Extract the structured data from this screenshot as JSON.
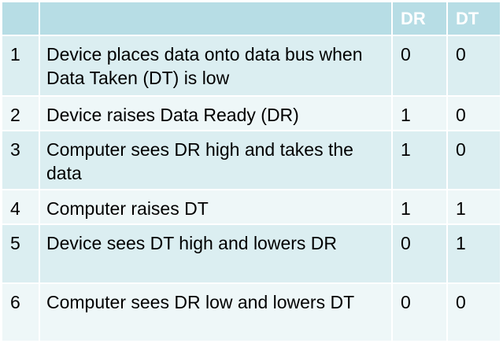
{
  "table": {
    "headers": [
      "",
      "",
      "DR",
      "DT"
    ],
    "rows": [
      {
        "num": "1",
        "desc": "Device places data onto data bus when Data Taken (DT) is low",
        "dr": "0",
        "dt": "0"
      },
      {
        "num": "2",
        "desc": "Device raises Data Ready (DR)",
        "dr": "1",
        "dt": "0"
      },
      {
        "num": "3",
        "desc": "Computer sees DR high and takes the data",
        "dr": "1",
        "dt": "0"
      },
      {
        "num": "4",
        "desc": "Computer raises DT",
        "dr": "1",
        "dt": "1"
      },
      {
        "num": "5",
        "desc": "Device sees DT high and lowers DR",
        "dr": "0",
        "dt": "1"
      },
      {
        "num": "6",
        "desc": "Computer sees DR low and lowers DT",
        "dr": "0",
        "dt": "0"
      }
    ]
  },
  "colors": {
    "header_bg": "#b7dde5",
    "row_odd_bg": "#dbeef1",
    "row_even_bg": "#eef7f8",
    "header_text": "#ffffff",
    "body_text": "#000000"
  }
}
